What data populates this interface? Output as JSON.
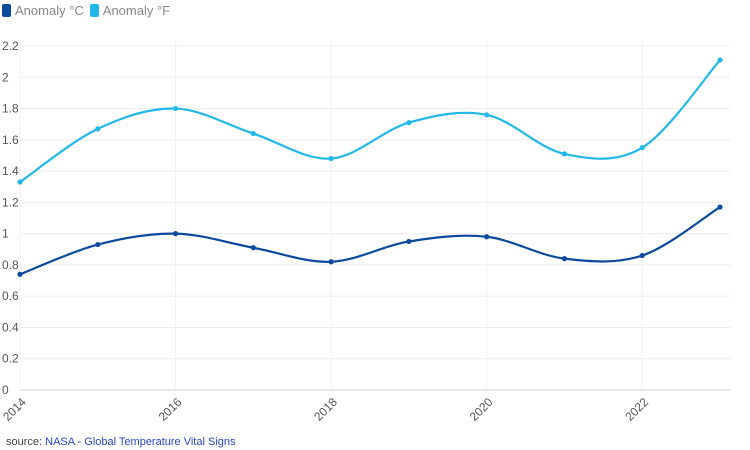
{
  "source": {
    "prefix": "source:",
    "link_text": "NASA - Global Temperature Vital Signs"
  },
  "chart_data": {
    "type": "line",
    "x": [
      2014,
      2015,
      2016,
      2017,
      2018,
      2019,
      2020,
      2021,
      2022,
      2023
    ],
    "series": [
      {
        "name": "Anomaly °C",
        "color": "#0b4a9c",
        "values": [
          0.74,
          0.93,
          1.0,
          0.91,
          0.82,
          0.95,
          0.98,
          0.84,
          0.86,
          1.17
        ]
      },
      {
        "name": "Anomaly °F",
        "color": "#22b8ea",
        "values": [
          1.33,
          1.67,
          1.8,
          1.64,
          1.48,
          1.71,
          1.76,
          1.51,
          1.55,
          2.11
        ]
      }
    ],
    "xticks": [
      "2014",
      "2016",
      "2018",
      "2020",
      "2022"
    ],
    "yticks": [
      "0",
      "0.2",
      "0.4",
      "0.6",
      "0.8",
      "1",
      "1.2",
      "1.4",
      "1.6",
      "1.8",
      "2",
      "2.2"
    ],
    "xlim": [
      2014,
      2023
    ],
    "ylim": [
      0,
      2.2
    ],
    "grid": true,
    "legend_position": "top-left",
    "title": "",
    "xlabel": "",
    "ylabel": ""
  }
}
